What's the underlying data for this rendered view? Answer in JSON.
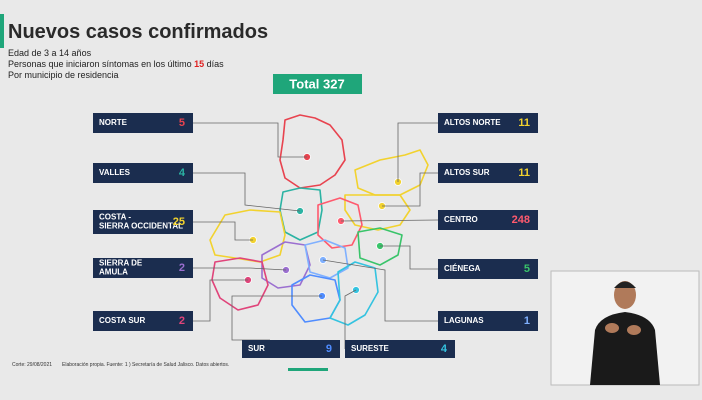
{
  "header": {
    "title": "Nuevos casos confirmados",
    "lines": [
      "Edad de 3 a 14 años",
      "Por municipio de residencia"
    ],
    "period": {
      "prefix": "Personas que iniciaron síntomas en los último",
      "highlight": "15",
      "suffix": "días"
    }
  },
  "total": "Total 327",
  "regions": [
    {
      "name": "NORTE",
      "value": 5,
      "color": "#e8434f"
    },
    {
      "name": "VALLES",
      "value": 4,
      "color": "#2bb3a3"
    },
    {
      "name": "COSTA - SIERRA OCCIDENTAL",
      "value": 25,
      "color": "#f2d22e"
    },
    {
      "name": "SIERRA DE AMULA",
      "value": 2,
      "color": "#9b6fd0"
    },
    {
      "name": "COSTA SUR",
      "value": 2,
      "color": "#e0447a"
    },
    {
      "name": "ALTOS NORTE",
      "value": 11,
      "color": "#f2d22e"
    },
    {
      "name": "ALTOS SUR",
      "value": 11,
      "color": "#f2d22e"
    },
    {
      "name": "CENTRO",
      "value": 248,
      "color": "#ff5a6e"
    },
    {
      "name": "CIÉNEGA",
      "value": 5,
      "color": "#39c46a"
    },
    {
      "name": "LAGUNAS",
      "value": 1,
      "color": "#7fb0ff"
    },
    {
      "name": "SUR",
      "value": 9,
      "color": "#4f8cff"
    },
    {
      "name": "SURESTE",
      "value": 4,
      "color": "#34c3e0"
    }
  ],
  "footer": {
    "cut": "Corte: 29/08/2021",
    "source": "Elaboración propia. Fuente: 1 ) Secretaría de Salud Jalisco. Datos abiertos."
  }
}
